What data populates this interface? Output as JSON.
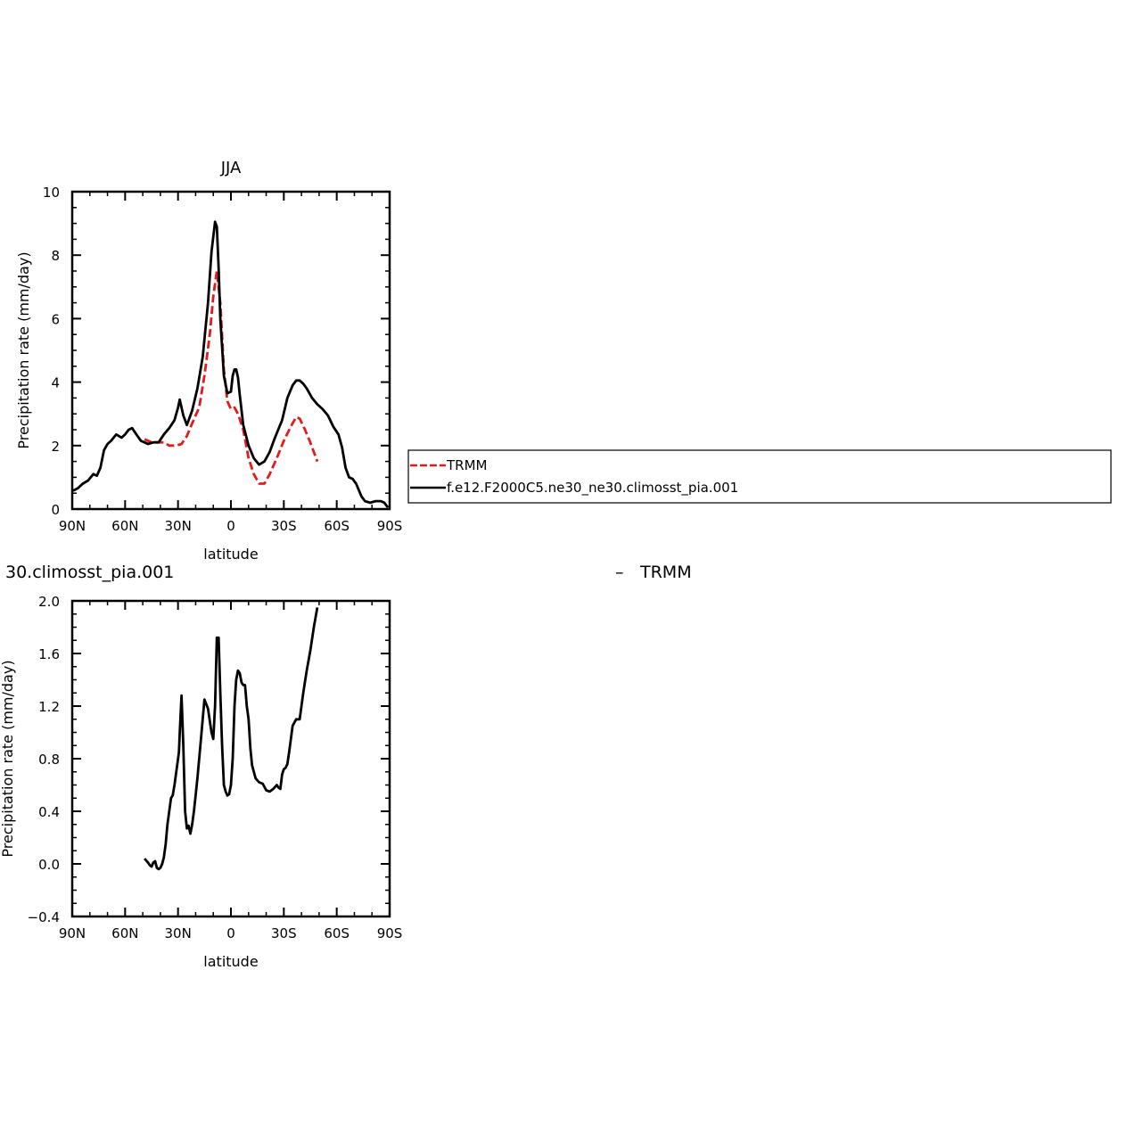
{
  "chart_data": [
    {
      "type": "line",
      "title": "JJA",
      "xlabel": "latitude",
      "ylabel": "Precipitation rate (mm/day)",
      "xlim": [
        90,
        -90
      ],
      "ylim": [
        0,
        10
      ],
      "x_tick_values": [
        90,
        60,
        30,
        0,
        -30,
        -60,
        -90
      ],
      "x_tick_labels": [
        "90N",
        "60N",
        "30N",
        "0",
        "30S",
        "60S",
        "90S"
      ],
      "y_ticks": [
        "0",
        "2",
        "4",
        "6",
        "8",
        "10"
      ],
      "y_tick_values": [
        0,
        2,
        4,
        6,
        8,
        10
      ],
      "grid": false,
      "legend_position": "right",
      "series": [
        {
          "name": "TRMM",
          "color": "#e41a1c",
          "style": "dashed",
          "x": [
            49,
            45,
            42,
            38,
            35,
            31,
            28,
            25,
            22,
            18,
            15,
            12,
            10,
            8,
            6,
            4,
            2,
            0,
            -2,
            -4,
            -7,
            -10,
            -13,
            -16,
            -19,
            -22,
            -26,
            -30,
            -34,
            -37,
            -39,
            -42,
            -45,
            -49
          ],
          "y": [
            2.2,
            2.1,
            2.1,
            2.1,
            2.0,
            2.0,
            2.05,
            2.3,
            2.7,
            3.2,
            4.2,
            5.5,
            6.7,
            7.5,
            6.5,
            4.4,
            3.4,
            3.15,
            3.2,
            3.0,
            2.5,
            1.6,
            1.1,
            0.8,
            0.8,
            1.1,
            1.6,
            2.15,
            2.6,
            2.9,
            2.85,
            2.5,
            2.1,
            1.5
          ]
        },
        {
          "name": "f.e12.F2000C5.ne30_ne30.climosst_pia.001",
          "color": "#000000",
          "style": "solid",
          "x": [
            89.5,
            87,
            84,
            81,
            78,
            76,
            74,
            72,
            70,
            68,
            65,
            62,
            60,
            58,
            56,
            53,
            51,
            49,
            47,
            44,
            41,
            38,
            35,
            32,
            30,
            29,
            27,
            25,
            22,
            19,
            16,
            13,
            11,
            9,
            8,
            7,
            6,
            4,
            2,
            0,
            -1,
            -2,
            -3,
            -4,
            -5,
            -7,
            -10,
            -13,
            -16,
            -19,
            -22,
            -25,
            -29,
            -32,
            -35,
            -37,
            -39,
            -41,
            -43,
            -46,
            -49,
            -52,
            -55,
            -58,
            -61,
            -63,
            -65,
            -67,
            -69,
            -71,
            -74,
            -76,
            -79,
            -82,
            -85,
            -87,
            -89
          ],
          "y": [
            0.58,
            0.65,
            0.8,
            0.9,
            1.1,
            1.05,
            1.3,
            1.85,
            2.05,
            2.15,
            2.35,
            2.25,
            2.35,
            2.5,
            2.55,
            2.3,
            2.15,
            2.1,
            2.05,
            2.1,
            2.1,
            2.35,
            2.55,
            2.8,
            3.2,
            3.45,
            2.95,
            2.65,
            3.1,
            3.8,
            4.8,
            6.5,
            8.1,
            9.05,
            8.9,
            7.6,
            6.0,
            4.2,
            3.65,
            3.7,
            4.2,
            4.4,
            4.4,
            4.15,
            3.6,
            2.65,
            2.0,
            1.6,
            1.4,
            1.5,
            1.8,
            2.25,
            2.8,
            3.5,
            3.9,
            4.05,
            4.05,
            3.95,
            3.8,
            3.5,
            3.3,
            3.15,
            2.95,
            2.6,
            2.35,
            1.95,
            1.3,
            1.0,
            0.95,
            0.8,
            0.4,
            0.25,
            0.2,
            0.25,
            0.25,
            0.2,
            0.05
          ]
        }
      ],
      "legend": [
        "TRMM",
        "f.e12.F2000C5.ne30_ne30.climosst_pia.001"
      ]
    },
    {
      "type": "line",
      "title": "30.climosst_pia.001",
      "title_right": "TRMM",
      "title_right_prefix": "–",
      "xlabel": "latitude",
      "ylabel": "Precipitation rate (mm/day)",
      "xlim": [
        90,
        -90
      ],
      "ylim": [
        -0.4,
        2.0
      ],
      "x_tick_values": [
        90,
        60,
        30,
        0,
        -30,
        -60,
        -90
      ],
      "x_tick_labels": [
        "90N",
        "60N",
        "30N",
        "0",
        "30S",
        "60S",
        "90S"
      ],
      "y_ticks": [
        "−0.4",
        "0.0",
        "0.4",
        "0.8",
        "1.2",
        "1.6",
        "2.0"
      ],
      "y_tick_values": [
        -0.4,
        0.0,
        0.4,
        0.8,
        1.2,
        1.6,
        2.0
      ],
      "grid": false,
      "series": [
        {
          "color": "#000000",
          "style": "solid",
          "x": [
            49,
            47,
            46,
            45,
            44,
            43,
            42,
            41,
            40,
            39,
            38,
            37,
            36,
            35,
            34,
            33,
            32,
            31,
            30,
            29.5,
            29,
            28,
            27,
            26,
            25,
            24,
            23,
            22,
            21,
            20,
            19,
            18,
            17,
            15,
            13,
            11,
            10,
            9,
            8,
            7,
            6,
            5,
            4,
            3,
            2,
            1,
            0,
            -1,
            -2,
            -3,
            -4,
            -5,
            -6,
            -7,
            -8,
            -9,
            -10,
            -11,
            -12,
            -14,
            -16,
            -18,
            -20,
            -22,
            -24,
            -26,
            -27,
            -28,
            -29,
            -30,
            -31,
            -32,
            -33,
            -35,
            -37,
            -39,
            -41,
            -43,
            -45,
            -47,
            -49
          ],
          "y": [
            0.04,
            0.01,
            -0.01,
            -0.02,
            0.01,
            0.02,
            -0.03,
            -0.04,
            -0.03,
            0.0,
            0.05,
            0.15,
            0.3,
            0.4,
            0.5,
            0.52,
            0.6,
            0.7,
            0.8,
            0.85,
            1.0,
            1.28,
            0.9,
            0.4,
            0.27,
            0.29,
            0.23,
            0.3,
            0.4,
            0.52,
            0.65,
            0.8,
            0.95,
            1.25,
            1.18,
            1.0,
            0.95,
            1.2,
            1.72,
            1.72,
            1.3,
            0.9,
            0.6,
            0.55,
            0.52,
            0.53,
            0.6,
            0.8,
            1.2,
            1.4,
            1.47,
            1.45,
            1.38,
            1.36,
            1.36,
            1.2,
            1.1,
            0.88,
            0.75,
            0.65,
            0.62,
            0.61,
            0.56,
            0.55,
            0.57,
            0.6,
            0.58,
            0.57,
            0.68,
            0.72,
            0.73,
            0.76,
            0.85,
            1.05,
            1.1,
            1.1,
            1.3,
            1.47,
            1.62,
            1.8,
            1.95
          ]
        }
      ]
    }
  ]
}
